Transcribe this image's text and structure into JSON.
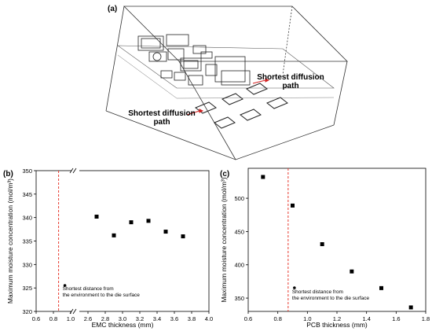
{
  "panel_a": {
    "label": "(a)",
    "annotation_upper": {
      "line1": "Shortest diffusion",
      "line2": "path"
    },
    "annotation_lower": {
      "line1": "Shortest diffusion",
      "line2": "path"
    },
    "colors": {
      "outline": "#333333",
      "arrow": "#d22222"
    }
  },
  "panel_b": {
    "label": "(b)"
  },
  "panel_c": {
    "label": "(c)"
  },
  "chart_data": [
    {
      "type": "scatter",
      "xlabel": "EMC thickness (mm)",
      "ylabel": "Maximum moisture concentration (mol/m³)",
      "xlim": [
        0.6,
        4.0
      ],
      "ylim": [
        320,
        350
      ],
      "axis_break": true,
      "x_ticks": [
        "0.6",
        "0.8",
        "1.0",
        "2.6",
        "2.8",
        "3.0",
        "3.2",
        "3.4",
        "3.6",
        "3.8",
        "4.0"
      ],
      "y_ticks": [
        "320",
        "325",
        "330",
        "335",
        "340",
        "345",
        "350"
      ],
      "x": [
        2.7,
        2.9,
        3.1,
        3.3,
        3.5,
        3.7
      ],
      "y": [
        340.2,
        336.2,
        339.0,
        339.3,
        337.0,
        336.0
      ],
      "reference_line": {
        "x": 0.86,
        "style": "dashed",
        "color": "#e8392e"
      },
      "annotation": {
        "line1": "Shortest distance from",
        "line2": "the environment to the die surface"
      },
      "marker_color": "#000000"
    },
    {
      "type": "scatter",
      "xlabel": "PCB thickness (mm)",
      "ylabel": "Maximum moisture concentration (mol/m³)",
      "xlim": [
        0.6,
        1.8
      ],
      "ylim": [
        330,
        545
      ],
      "x_ticks": [
        "0.6",
        "0.8",
        "1.0",
        "1.2",
        "1.4",
        "1.6",
        "1.8"
      ],
      "y_ticks": [
        "350",
        "400",
        "450",
        "500"
      ],
      "x": [
        0.7,
        0.9,
        1.1,
        1.3,
        1.5,
        1.7
      ],
      "y": [
        532,
        489,
        431,
        390,
        365,
        336
      ],
      "reference_line": {
        "x": 0.87,
        "style": "dashed",
        "color": "#e8392e"
      },
      "annotation": {
        "line1": "Shortest distance from",
        "line2": "the environment to the die surface"
      },
      "marker_color": "#000000"
    }
  ]
}
